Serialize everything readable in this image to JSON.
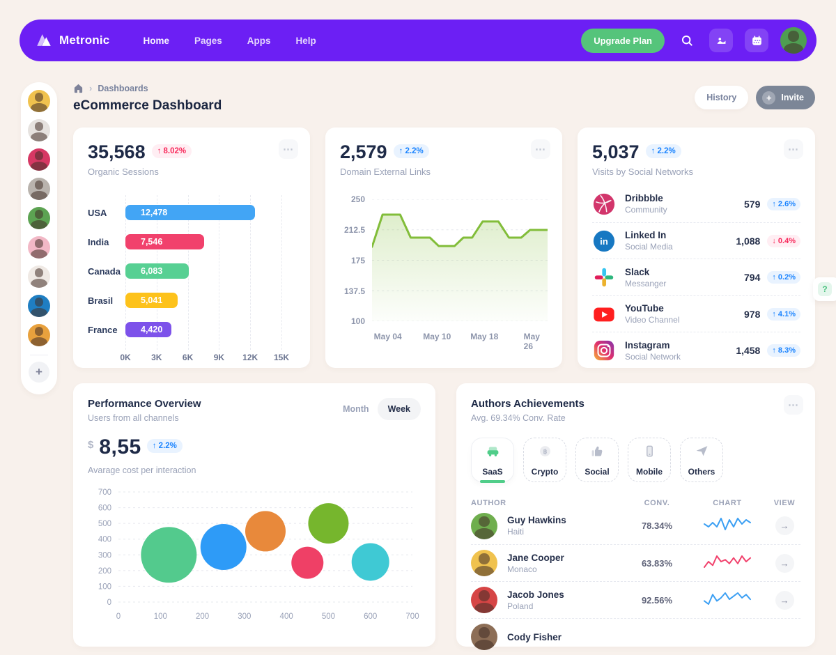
{
  "navbar": {
    "brand": "Metronic",
    "items": [
      {
        "label": "Home",
        "active": true
      },
      {
        "label": "Pages",
        "active": false
      },
      {
        "label": "Apps",
        "active": false
      },
      {
        "label": "Help",
        "active": false
      }
    ],
    "upgrade_label": "Upgrade Plan",
    "icons": [
      "search-icon",
      "gallery-icon",
      "calendar-icon"
    ],
    "avatar_bg": "#4f9e52"
  },
  "sidebar": {
    "avatars": [
      {
        "bg": "#f0c24e"
      },
      {
        "bg": "#e6e2df"
      },
      {
        "bg": "#d63864"
      },
      {
        "bg": "#b9b3ad"
      },
      {
        "bg": "#5ca352"
      },
      {
        "bg": "#f2b8c6"
      },
      {
        "bg": "#efe9e4"
      },
      {
        "bg": "#1f7ec2"
      },
      {
        "bg": "#e8a13d"
      }
    ],
    "add_label": "+"
  },
  "page": {
    "breadcrumb": "Dashboards",
    "title": "eCommerce Dashboard",
    "history_label": "History",
    "invite_label": "Invite",
    "invite_plus": "+"
  },
  "stats": {
    "organic": {
      "value": "35,568",
      "delta": "↑ 8.02%",
      "label": "Organic Sessions"
    },
    "domains": {
      "value": "2,579",
      "delta": "↑ 2.2%",
      "label": "Domain External Links"
    },
    "social": {
      "value": "5,037",
      "delta": "↑ 2.2%",
      "label": "Visits by Social Networks"
    }
  },
  "social_list": [
    {
      "name": "Dribbble",
      "sub": "Community",
      "value": "579",
      "delta": "2.6%",
      "dir": "up",
      "icon": "dribbble-icon"
    },
    {
      "name": "Linked In",
      "sub": "Social Media",
      "value": "1,088",
      "delta": "0.4%",
      "dir": "down",
      "icon": "linkedin-icon"
    },
    {
      "name": "Slack",
      "sub": "Messanger",
      "value": "794",
      "delta": "0.2%",
      "dir": "up",
      "icon": "slack-icon"
    },
    {
      "name": "YouTube",
      "sub": "Video Channel",
      "value": "978",
      "delta": "4.1%",
      "dir": "up",
      "icon": "youtube-icon"
    },
    {
      "name": "Instagram",
      "sub": "Social Network",
      "value": "1,458",
      "delta": "8.3%",
      "dir": "up",
      "icon": "instagram-icon"
    }
  ],
  "performance": {
    "title": "Performance Overview",
    "subtitle": "Users from all channels",
    "month_label": "Month",
    "week_label": "Week",
    "currency": "$",
    "value": "8,55",
    "delta": "↑ 2.2%",
    "note": "Avarage cost per interaction"
  },
  "authors": {
    "title": "Authors Achievements",
    "subtitle": "Avg. 69.34% Conv. Rate",
    "tabs": [
      {
        "label": "SaaS",
        "icon": "car-icon",
        "active": true
      },
      {
        "label": "Crypto",
        "icon": "bitcoin-icon",
        "active": false
      },
      {
        "label": "Social",
        "icon": "thumbs-up-icon",
        "active": false
      },
      {
        "label": "Mobile",
        "icon": "phone-icon",
        "active": false
      },
      {
        "label": "Others",
        "icon": "paper-plane-icon",
        "active": false
      }
    ],
    "columns": [
      "AUTHOR",
      "CONV.",
      "CHART",
      "VIEW"
    ],
    "rows": [
      {
        "name": "Guy Hawkins",
        "country": "Haiti",
        "conv": "78.34%",
        "spark_color": "#3b9ff3",
        "spark": [
          8,
          6,
          9,
          6,
          12,
          4,
          11,
          6,
          12,
          8,
          11,
          9
        ],
        "avatar_bg": "#6fae4e",
        "view": "→"
      },
      {
        "name": "Jane Cooper",
        "country": "Monaco",
        "conv": "63.83%",
        "spark_color": "#f1416c",
        "spark": [
          6,
          9,
          7,
          12,
          9,
          10,
          8,
          11,
          8,
          12,
          9,
          11
        ],
        "avatar_bg": "#f0c24e",
        "view": "→"
      },
      {
        "name": "Jacob Jones",
        "country": "Poland",
        "conv": "92.56%",
        "spark_color": "#3b9ff3",
        "spark": [
          7,
          5,
          11,
          7,
          9,
          12,
          8,
          10,
          12,
          9,
          11,
          8
        ],
        "avatar_bg": "#d64545",
        "view": "→"
      },
      {
        "name": "Cody Fisher",
        "country": "",
        "conv": "",
        "spark_color": "",
        "spark": [],
        "avatar_bg": "#8d6e56",
        "view": ""
      }
    ]
  },
  "help": {
    "label": "?"
  },
  "chart_data": [
    {
      "id": "organic_bars",
      "type": "bar",
      "orientation": "horizontal",
      "title": "Organic Sessions",
      "categories": [
        "USA",
        "India",
        "Canada",
        "Brasil",
        "France"
      ],
      "values": [
        12478,
        7546,
        6083,
        5041,
        4420
      ],
      "value_labels": [
        "12,478",
        "7,546",
        "6,083",
        "5,041",
        "4,420"
      ],
      "colors": [
        "#42a5f5",
        "#f1416c",
        "#57d093",
        "#fdc21b",
        "#7d52ea"
      ],
      "xlim": [
        0,
        15000
      ],
      "x_ticks": [
        "0K",
        "3K",
        "6K",
        "9K",
        "12K",
        "15K"
      ],
      "grid": "vertical-dashed"
    },
    {
      "id": "domain_links_line",
      "type": "area",
      "title": "Domain External Links",
      "color": "#82bd3a",
      "x_percent": [
        0,
        6,
        16,
        22,
        33,
        38,
        47,
        52,
        57,
        63,
        72,
        78,
        85,
        90,
        100
      ],
      "values": [
        188,
        230,
        230,
        200,
        200,
        189,
        189,
        200,
        200,
        221,
        221,
        200,
        200,
        210,
        210
      ],
      "ylim": [
        100,
        250
      ],
      "y_ticks": [
        "250",
        "212.5",
        "175",
        "137.5",
        "100"
      ],
      "x_ticks": [
        "May 04",
        "May 10",
        "May 18",
        "May 26"
      ],
      "x_tick_pos": [
        9,
        37,
        64,
        91
      ],
      "grid": "horizontal-dashed"
    },
    {
      "id": "performance_bubbles",
      "type": "scatter",
      "title": "Performance Overview",
      "xlim": [
        0,
        700
      ],
      "ylim": [
        0,
        700
      ],
      "x_ticks": [
        "0",
        "100",
        "200",
        "300",
        "400",
        "500",
        "600",
        "700"
      ],
      "y_ticks": [
        "700",
        "600",
        "500",
        "400",
        "300",
        "200",
        "100",
        "0"
      ],
      "points": [
        {
          "x": 120,
          "y": 300,
          "r": 40,
          "color": "#53ca8d"
        },
        {
          "x": 250,
          "y": 350,
          "r": 33,
          "color": "#2e9bf7"
        },
        {
          "x": 350,
          "y": 450,
          "r": 29,
          "color": "#e8893b"
        },
        {
          "x": 500,
          "y": 500,
          "r": 29,
          "color": "#76b62d"
        },
        {
          "x": 450,
          "y": 250,
          "r": 23,
          "color": "#ef4066"
        },
        {
          "x": 600,
          "y": 255,
          "r": 27,
          "color": "#3fc9d4"
        }
      ],
      "grid": "horizontal-dashed"
    }
  ]
}
